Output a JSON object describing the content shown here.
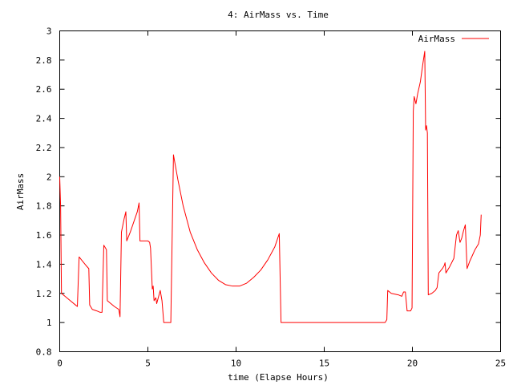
{
  "chart_data": {
    "type": "line",
    "title": "4: AirMass vs. Time",
    "xlabel": "time (Elapse Hours)",
    "ylabel": "AirMass",
    "xlim": [
      0,
      25
    ],
    "ylim": [
      0.8,
      3
    ],
    "xticks": [
      0,
      5,
      10,
      15,
      20,
      25
    ],
    "xtick_labels": [
      "0",
      "5",
      "10",
      "15",
      "20",
      "25"
    ],
    "yticks": [
      0.8,
      1,
      1.2,
      1.4,
      1.6,
      1.8,
      2,
      2.2,
      2.4,
      2.6,
      2.8,
      3
    ],
    "ytick_labels": [
      "0.8",
      "1",
      "1.2",
      "1.4",
      "1.6",
      "1.8",
      "2",
      "2.2",
      "2.4",
      "2.6",
      "2.8",
      "3"
    ],
    "grid": false,
    "legend_position": "top-right",
    "series": [
      {
        "name": "AirMass",
        "color": "#ff0000",
        "points": [
          [
            0.0,
            2.0
          ],
          [
            0.05,
            1.8
          ],
          [
            0.1,
            1.2
          ],
          [
            0.3,
            1.18
          ],
          [
            0.6,
            1.15
          ],
          [
            0.9,
            1.12
          ],
          [
            1.0,
            1.11
          ],
          [
            1.1,
            1.45
          ],
          [
            1.3,
            1.42
          ],
          [
            1.5,
            1.39
          ],
          [
            1.65,
            1.37
          ],
          [
            1.7,
            1.12
          ],
          [
            1.85,
            1.09
          ],
          [
            2.1,
            1.08
          ],
          [
            2.3,
            1.07
          ],
          [
            2.4,
            1.07
          ],
          [
            2.5,
            1.53
          ],
          [
            2.65,
            1.5
          ],
          [
            2.7,
            1.15
          ],
          [
            2.9,
            1.13
          ],
          [
            3.1,
            1.11
          ],
          [
            3.35,
            1.09
          ],
          [
            3.42,
            1.04
          ],
          [
            3.5,
            1.62
          ],
          [
            3.65,
            1.71
          ],
          [
            3.75,
            1.76
          ],
          [
            3.8,
            1.56
          ],
          [
            4.0,
            1.62
          ],
          [
            4.2,
            1.69
          ],
          [
            4.4,
            1.76
          ],
          [
            4.5,
            1.82
          ],
          [
            4.55,
            1.56
          ],
          [
            4.8,
            1.56
          ],
          [
            5.0,
            1.56
          ],
          [
            5.1,
            1.55
          ],
          [
            5.15,
            1.51
          ],
          [
            5.25,
            1.23
          ],
          [
            5.3,
            1.25
          ],
          [
            5.35,
            1.15
          ],
          [
            5.45,
            1.17
          ],
          [
            5.5,
            1.13
          ],
          [
            5.7,
            1.22
          ],
          [
            5.8,
            1.15
          ],
          [
            5.9,
            1.0
          ],
          [
            6.1,
            1.0
          ],
          [
            6.3,
            1.0
          ],
          [
            6.45,
            2.15
          ],
          [
            6.7,
            1.98
          ],
          [
            7.0,
            1.8
          ],
          [
            7.4,
            1.62
          ],
          [
            7.8,
            1.5
          ],
          [
            8.2,
            1.41
          ],
          [
            8.6,
            1.34
          ],
          [
            9.0,
            1.29
          ],
          [
            9.4,
            1.26
          ],
          [
            9.8,
            1.25
          ],
          [
            10.2,
            1.25
          ],
          [
            10.6,
            1.27
          ],
          [
            11.0,
            1.31
          ],
          [
            11.4,
            1.36
          ],
          [
            11.8,
            1.43
          ],
          [
            12.2,
            1.52
          ],
          [
            12.45,
            1.61
          ],
          [
            12.55,
            1.0
          ],
          [
            15.0,
            1.0
          ],
          [
            17.5,
            1.0
          ],
          [
            18.45,
            1.0
          ],
          [
            18.55,
            1.02
          ],
          [
            18.6,
            1.22
          ],
          [
            18.8,
            1.2
          ],
          [
            19.2,
            1.19
          ],
          [
            19.4,
            1.18
          ],
          [
            19.5,
            1.21
          ],
          [
            19.6,
            1.21
          ],
          [
            19.7,
            1.08
          ],
          [
            19.9,
            1.08
          ],
          [
            19.98,
            1.1
          ],
          [
            20.05,
            2.45
          ],
          [
            20.1,
            2.55
          ],
          [
            20.2,
            2.5
          ],
          [
            20.3,
            2.57
          ],
          [
            20.45,
            2.65
          ],
          [
            20.6,
            2.78
          ],
          [
            20.7,
            2.86
          ],
          [
            20.75,
            2.32
          ],
          [
            20.8,
            2.35
          ],
          [
            20.85,
            2.3
          ],
          [
            20.9,
            1.19
          ],
          [
            21.1,
            1.2
          ],
          [
            21.3,
            1.22
          ],
          [
            21.4,
            1.24
          ],
          [
            21.5,
            1.34
          ],
          [
            21.7,
            1.37
          ],
          [
            21.8,
            1.39
          ],
          [
            21.85,
            1.41
          ],
          [
            21.9,
            1.34
          ],
          [
            22.1,
            1.38
          ],
          [
            22.35,
            1.44
          ],
          [
            22.5,
            1.6
          ],
          [
            22.6,
            1.63
          ],
          [
            22.7,
            1.55
          ],
          [
            22.8,
            1.58
          ],
          [
            22.9,
            1.63
          ],
          [
            23.0,
            1.67
          ],
          [
            23.1,
            1.37
          ],
          [
            23.25,
            1.42
          ],
          [
            23.4,
            1.46
          ],
          [
            23.55,
            1.5
          ],
          [
            23.75,
            1.54
          ],
          [
            23.85,
            1.6
          ],
          [
            23.9,
            1.74
          ]
        ]
      }
    ]
  }
}
